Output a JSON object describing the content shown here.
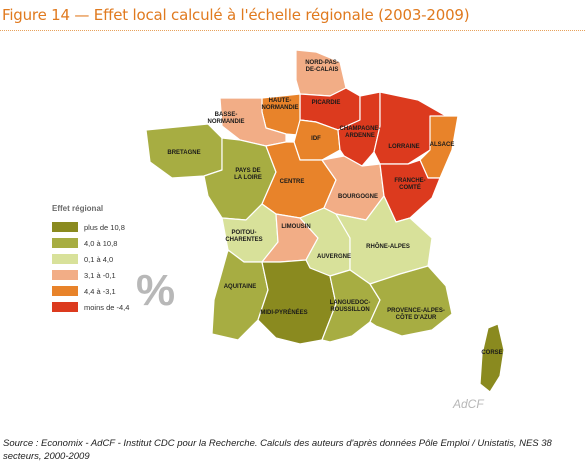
{
  "title": "Figure 14 — Effet local calculé à l'échelle régionale (2003-2009)",
  "legend": {
    "title": "Effet régional",
    "items": [
      {
        "label": "plus de 10,8",
        "color": "#8a8a1f"
      },
      {
        "label": "4,0 à 10,8",
        "color": "#a7ad42"
      },
      {
        "label": "0,1 à 4,0",
        "color": "#d8e19a"
      },
      {
        "label": "3,1 à -0,1",
        "color": "#f2ad86"
      },
      {
        "label": "4,4 à -3,1",
        "color": "#e8832a"
      },
      {
        "label": "moins de -4,4",
        "color": "#dc3a1e"
      }
    ]
  },
  "regions": [
    {
      "label": "NORD-PAS-\nDE-CALAIS",
      "color": "#f2ad86"
    },
    {
      "label": "PICARDIE",
      "color": "#dc3a1e"
    },
    {
      "label": "HAUTE-\nNORMANDIE",
      "color": "#e8832a"
    },
    {
      "label": "BASSE-\nNORMANDIE",
      "color": "#f2ad86"
    },
    {
      "label": "IDF",
      "color": "#e8832a"
    },
    {
      "label": "CHAMPAGNE-\nARDENNE",
      "color": "#dc3a1e"
    },
    {
      "label": "LORRAINE",
      "color": "#dc3a1e"
    },
    {
      "label": "ALSACE",
      "color": "#e8832a"
    },
    {
      "label": "BRETAGNE",
      "color": "#a7ad42"
    },
    {
      "label": "PAYS DE\nLA LOIRE",
      "color": "#a7ad42"
    },
    {
      "label": "CENTRE",
      "color": "#e8832a"
    },
    {
      "label": "BOURGOGNE",
      "color": "#f2ad86"
    },
    {
      "label": "FRANCHE-\nCOMTÉ",
      "color": "#dc3a1e"
    },
    {
      "label": "POITOU-\nCHARENTES",
      "color": "#d8e19a"
    },
    {
      "label": "LIMOUSIN",
      "color": "#f2ad86"
    },
    {
      "label": "AUVERGNE",
      "color": "#d8e19a"
    },
    {
      "label": "RHÔNE-ALPES",
      "color": "#d8e19a"
    },
    {
      "label": "AQUITAINE",
      "color": "#a7ad42"
    },
    {
      "label": "MIDI-PYRÉNÉES",
      "color": "#8a8a1f"
    },
    {
      "label": "LANGUEDOC-\nROUSSILLON",
      "color": "#a7ad42"
    },
    {
      "label": "PROVENCE-ALPES-\nCÔTE D'AZUR",
      "color": "#a7ad42"
    },
    {
      "label": "CORSE",
      "color": "#8a8a1f"
    }
  ],
  "percent_mark": "%",
  "watermark": "AdCF",
  "source": "Source : Economix - AdCF - Institut CDC pour la Recherche. Calculs des auteurs d'après données Pôle Emploi / Unistatis, NES 38 secteurs, 2000-2009"
}
